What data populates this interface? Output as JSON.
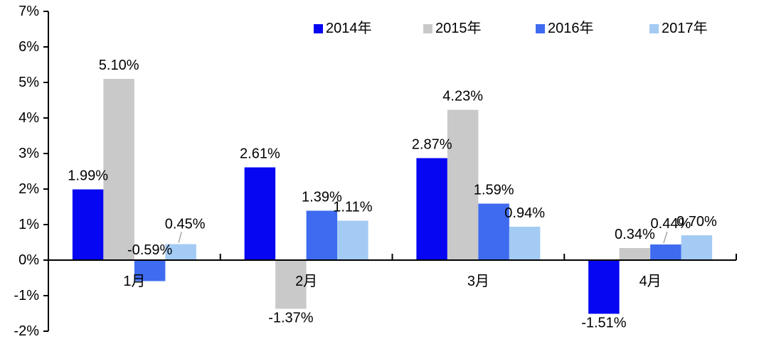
{
  "figure": {
    "background": "#ffffff",
    "axis_color": "#000000",
    "text_color": "#000000",
    "leader_line_color": "#a6a6a6"
  },
  "chart_data": {
    "type": "bar",
    "title": "",
    "xlabel": "",
    "ylabel": "",
    "categories": [
      "1月",
      "2月",
      "3月",
      "4月"
    ],
    "series": [
      {
        "name": "2014年",
        "color": "#0606f2",
        "values": [
          1.99,
          2.61,
          2.87,
          -1.51
        ],
        "labels": [
          "1.99%",
          "2.61%",
          "2.87%",
          "-1.51%"
        ]
      },
      {
        "name": "2015年",
        "color": "#c9c9c9",
        "values": [
          5.1,
          -1.37,
          4.23,
          0.34
        ],
        "labels": [
          "5.10%",
          "-1.37%",
          "4.23%",
          "0.34%"
        ]
      },
      {
        "name": "2016年",
        "color": "#3e6bf0",
        "values": [
          -0.59,
          1.39,
          1.59,
          0.44
        ],
        "labels": [
          "-0.59%",
          "1.39%",
          "1.59%",
          "0.44%"
        ]
      },
      {
        "name": "2017年",
        "color": "#a4cbf4",
        "values": [
          0.45,
          1.11,
          0.94,
          0.7
        ],
        "labels": [
          "0.45%",
          "1.11%",
          "0.94%",
          "0.70%"
        ]
      }
    ],
    "ylim": [
      -2,
      7
    ],
    "ytick_step": 1,
    "ytick_labels": [
      "7%",
      "6%",
      "5%",
      "4%",
      "3%",
      "2%",
      "1%",
      "0%",
      "-1%",
      "-2%"
    ],
    "grid": false,
    "legend_position": "top",
    "data_labels_visible": true
  }
}
